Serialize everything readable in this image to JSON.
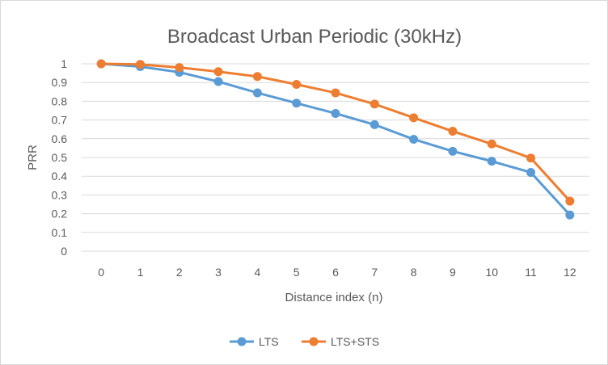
{
  "chart_data": {
    "type": "line",
    "title": "Broadcast Urban Periodic (30kHz)",
    "xlabel": "Distance index (n)",
    "ylabel": "PRR",
    "categories": [
      "0",
      "1",
      "2",
      "3",
      "4",
      "5",
      "6",
      "7",
      "8",
      "9",
      "10",
      "11",
      "12"
    ],
    "y_ticks": [
      "0",
      "0.1",
      "0.2",
      "0.3",
      "0.4",
      "0.5",
      "0.6",
      "0.7",
      "0.8",
      "0.9",
      "1"
    ],
    "ylim": [
      0,
      1
    ],
    "grid": "horizontal",
    "legend_position": "bottom",
    "series": [
      {
        "name": "LTS",
        "color": "#5b9bd5",
        "values": [
          1.0,
          0.985,
          0.955,
          0.905,
          0.845,
          0.79,
          0.735,
          0.675,
          0.597,
          0.533,
          0.48,
          0.42,
          0.193
        ]
      },
      {
        "name": "LTS+STS",
        "color": "#ed7d31",
        "values": [
          1.0,
          0.997,
          0.98,
          0.958,
          0.932,
          0.89,
          0.845,
          0.785,
          0.712,
          0.64,
          0.572,
          0.497,
          0.267
        ]
      }
    ]
  }
}
